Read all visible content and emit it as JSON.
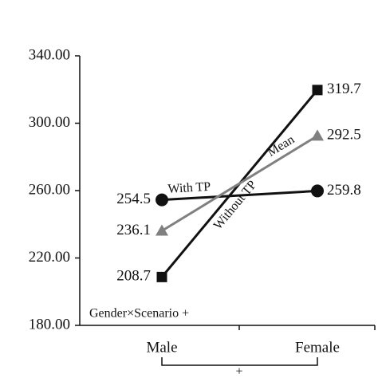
{
  "chart_data": {
    "type": "line",
    "categories": [
      "Male",
      "Female"
    ],
    "series": [
      {
        "name": "With TP",
        "color": "#111111",
        "marker": "circle",
        "values": [
          254.5,
          259.8
        ]
      },
      {
        "name": "Without TP",
        "color": "#111111",
        "marker": "square",
        "values": [
          208.7,
          319.7
        ]
      },
      {
        "name": "Mean",
        "color": "#808080",
        "marker": "triangle",
        "values": [
          236.1,
          292.5
        ]
      }
    ],
    "ylim": [
      180,
      340
    ],
    "yticks": [
      {
        "value": 180,
        "label": "180.00"
      },
      {
        "value": 220,
        "label": "220.00"
      },
      {
        "value": 260,
        "label": "260.00"
      },
      {
        "value": 300,
        "label": "300.00"
      },
      {
        "value": 340,
        "label": "340.00"
      }
    ],
    "annotation": "Gender×Scenario +",
    "bracket_label": "+"
  }
}
